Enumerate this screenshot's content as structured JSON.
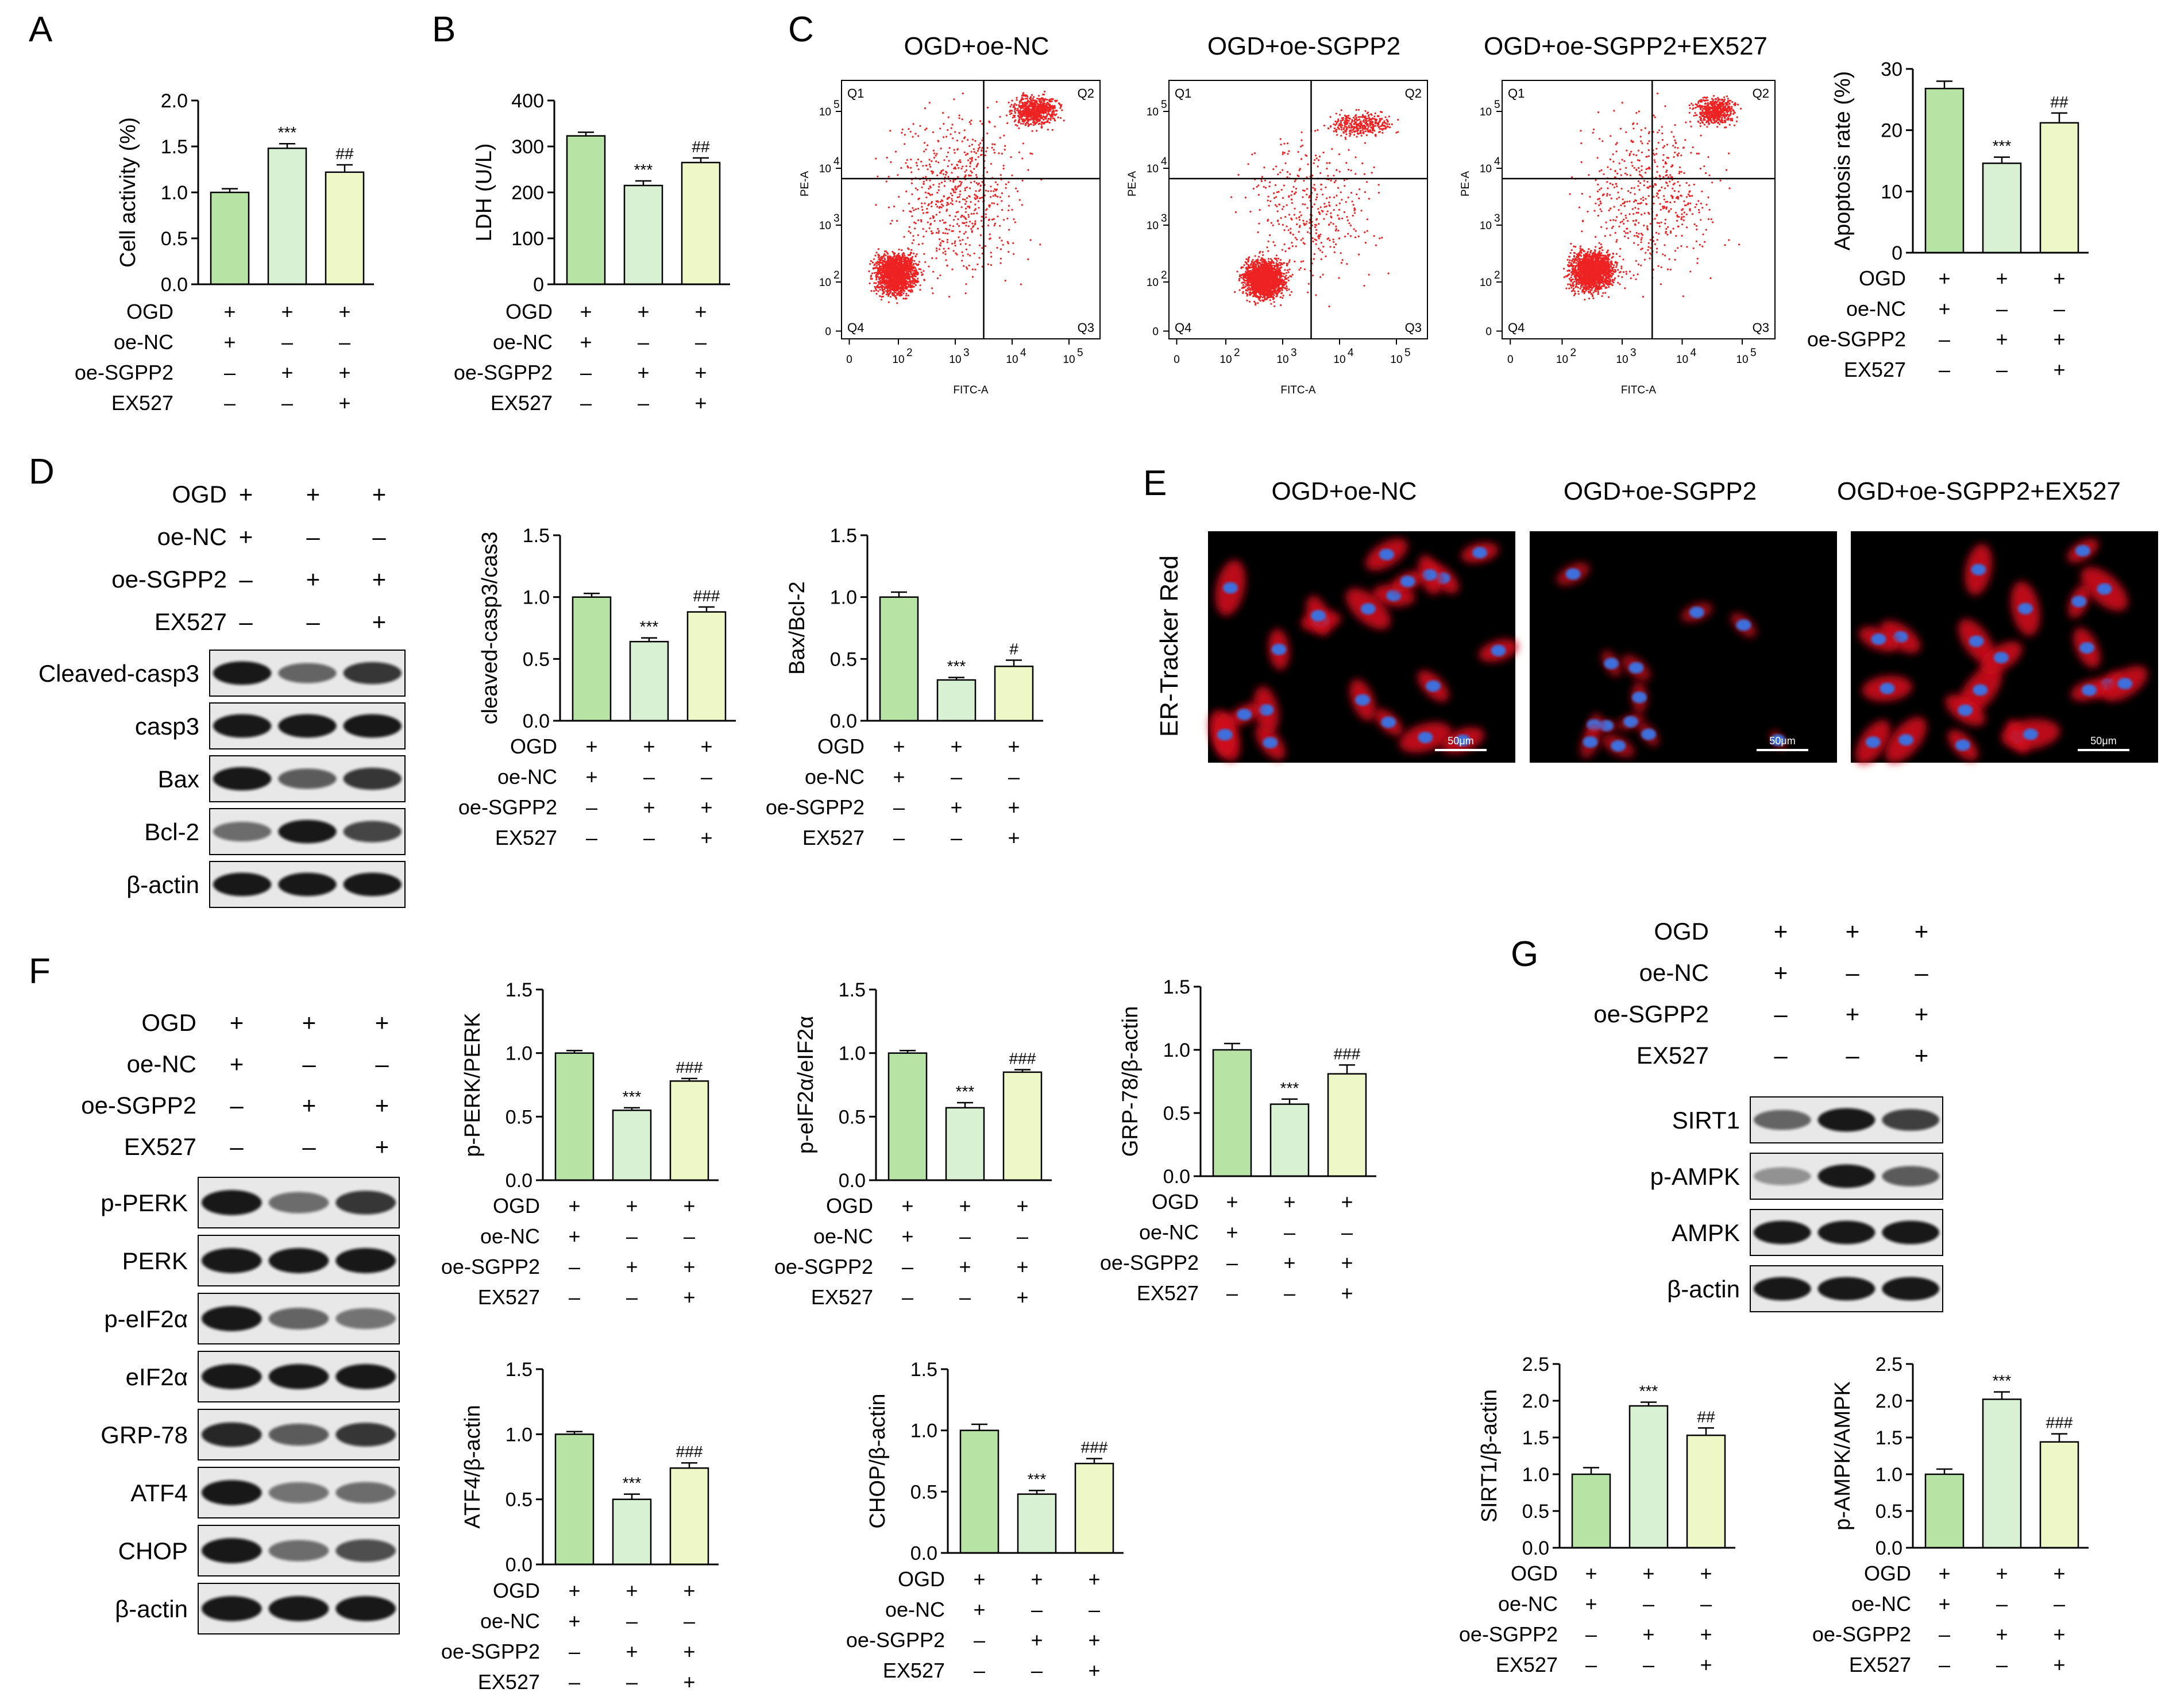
{
  "colors": {
    "bar_fills": [
      "#b7e3a4",
      "#d8f1d3",
      "#eef7c6"
    ],
    "bar_edge": "#000000",
    "dot": "#ee2222",
    "fluor_red": "#d0101c",
    "fluor_blue": "#3d6fdc"
  },
  "treatment_labels": [
    "OGD",
    "oe-NC",
    "oe-SGPP2",
    "EX527"
  ],
  "treatment_signs": [
    [
      "+",
      "+",
      "+"
    ],
    [
      "+",
      "–",
      "–"
    ],
    [
      "–",
      "+",
      "+"
    ],
    [
      "–",
      "–",
      "+"
    ]
  ],
  "panels": {
    "A": "A",
    "B": "B",
    "C": "C",
    "D": "D",
    "E": "E",
    "F": "F",
    "G": "G"
  },
  "flow": {
    "titles": [
      "OGD+oe-NC",
      "OGD+oe-SGPP2",
      "OGD+oe-SGPP2+EX527"
    ],
    "quadrants": [
      "Q1",
      "Q2",
      "Q3",
      "Q4"
    ],
    "xlabel": "FITC-A",
    "ylabel": "PE-A",
    "ticks": [
      "0",
      "10",
      "2",
      "10",
      "3",
      "10",
      "4",
      "10",
      "5"
    ]
  },
  "microscopy": {
    "titles": [
      "OGD+oe-NC",
      "OGD+oe-SGPP2",
      "OGD+oe-SGPP2+EX527"
    ],
    "ylabel": "ER-Tracker Red",
    "scale_label": "50μm"
  },
  "blots": {
    "D": {
      "header": [
        "OGD",
        "oe-NC",
        "oe-SGPP2",
        "EX527"
      ],
      "bands": [
        "Cleaved-casp3",
        "casp3",
        "Bax",
        "Bcl-2",
        "β-actin"
      ]
    },
    "F": {
      "header": [
        "OGD",
        "oe-NC",
        "oe-SGPP2",
        "EX527"
      ],
      "bands": [
        "p-PERK",
        "PERK",
        "p-eIF2α",
        "eIF2α",
        "GRP-78",
        "ATF4",
        "CHOP",
        "β-actin"
      ]
    },
    "G": {
      "header": [
        "OGD",
        "oe-NC",
        "oe-SGPP2",
        "EX527"
      ],
      "bands": [
        "SIRT1",
        "p-AMPK",
        "AMPK",
        "β-actin"
      ]
    }
  },
  "chart_data": [
    {
      "id": "A",
      "type": "bar",
      "ylabel": "Cell activity (%)",
      "ylim": [
        0,
        2.0
      ],
      "yticks": [
        "0.0",
        "0.5",
        "1.0",
        "1.5",
        "2.0"
      ],
      "values": [
        1.0,
        1.48,
        1.22
      ],
      "errors": [
        0.04,
        0.05,
        0.08
      ],
      "annotations": [
        "",
        "***",
        "##"
      ]
    },
    {
      "id": "B",
      "type": "bar",
      "ylabel": "LDH (U/L)",
      "ylim": [
        0,
        400
      ],
      "yticks": [
        "0",
        "100",
        "200",
        "300",
        "400"
      ],
      "values": [
        323,
        215,
        265
      ],
      "errors": [
        8,
        10,
        10
      ],
      "annotations": [
        "",
        "***",
        "##"
      ]
    },
    {
      "id": "C",
      "type": "bar",
      "ylabel": "Apoptosis rate (%)",
      "ylim": [
        0,
        30
      ],
      "yticks": [
        "0",
        "10",
        "20",
        "30"
      ],
      "values": [
        26.8,
        14.6,
        21.2
      ],
      "errors": [
        1.2,
        1.0,
        1.6
      ],
      "annotations": [
        "",
        "***",
        "##"
      ]
    },
    {
      "id": "D1",
      "type": "bar",
      "ylabel": "cleaved-casp3/cas3",
      "ylim": [
        0,
        1.5
      ],
      "yticks": [
        "0.0",
        "0.5",
        "1.0",
        "1.5"
      ],
      "values": [
        1.0,
        0.64,
        0.88
      ],
      "errors": [
        0.03,
        0.03,
        0.04
      ],
      "annotations": [
        "",
        "***",
        "###"
      ]
    },
    {
      "id": "D2",
      "type": "bar",
      "ylabel": "Bax/Bcl-2",
      "ylim": [
        0,
        1.5
      ],
      "yticks": [
        "0.0",
        "0.5",
        "1.0",
        "1.5"
      ],
      "values": [
        1.0,
        0.33,
        0.44
      ],
      "errors": [
        0.04,
        0.02,
        0.05
      ],
      "annotations": [
        "",
        "***",
        "#"
      ]
    },
    {
      "id": "F1",
      "type": "bar",
      "ylabel": "p-PERK/PERK",
      "ylim": [
        0,
        1.5
      ],
      "yticks": [
        "0.0",
        "0.5",
        "1.0",
        "1.5"
      ],
      "values": [
        1.0,
        0.55,
        0.78
      ],
      "errors": [
        0.02,
        0.02,
        0.02
      ],
      "annotations": [
        "",
        "***",
        "###"
      ]
    },
    {
      "id": "F2",
      "type": "bar",
      "ylabel": "p-eIF2α/eIF2α",
      "ylim": [
        0,
        1.5
      ],
      "yticks": [
        "0.0",
        "0.5",
        "1.0",
        "1.5"
      ],
      "values": [
        1.0,
        0.57,
        0.85
      ],
      "errors": [
        0.02,
        0.04,
        0.02
      ],
      "annotations": [
        "",
        "***",
        "###"
      ]
    },
    {
      "id": "F3",
      "type": "bar",
      "ylabel": "GRP-78/β-actin",
      "ylim": [
        0,
        1.5
      ],
      "yticks": [
        "0.0",
        "0.5",
        "1.0",
        "1.5"
      ],
      "values": [
        1.0,
        0.57,
        0.81
      ],
      "errors": [
        0.05,
        0.04,
        0.07
      ],
      "annotations": [
        "",
        "***",
        "###"
      ]
    },
    {
      "id": "F4",
      "type": "bar",
      "ylabel": "ATF4/β-actin",
      "ylim": [
        0,
        1.5
      ],
      "yticks": [
        "0.0",
        "0.5",
        "1.0",
        "1.5"
      ],
      "values": [
        1.0,
        0.5,
        0.74
      ],
      "errors": [
        0.02,
        0.04,
        0.04
      ],
      "annotations": [
        "",
        "***",
        "###"
      ]
    },
    {
      "id": "F5",
      "type": "bar",
      "ylabel": "CHOP/β-actin",
      "ylim": [
        0,
        1.5
      ],
      "yticks": [
        "0.0",
        "0.5",
        "1.0",
        "1.5"
      ],
      "values": [
        1.0,
        0.48,
        0.73
      ],
      "errors": [
        0.05,
        0.03,
        0.04
      ],
      "annotations": [
        "",
        "***",
        "###"
      ]
    },
    {
      "id": "G1",
      "type": "bar",
      "ylabel": "SIRT1/β-actin",
      "ylim": [
        0,
        2.5
      ],
      "yticks": [
        "0.0",
        "0.5",
        "1.0",
        "1.5",
        "2.0",
        "2.5"
      ],
      "values": [
        1.0,
        1.93,
        1.53
      ],
      "errors": [
        0.09,
        0.05,
        0.1
      ],
      "annotations": [
        "",
        "***",
        "##"
      ]
    },
    {
      "id": "G2",
      "type": "bar",
      "ylabel": "p-AMPK/AMPK",
      "ylim": [
        0,
        2.5
      ],
      "yticks": [
        "0.0",
        "0.5",
        "1.0",
        "1.5",
        "2.0",
        "2.5"
      ],
      "values": [
        1.0,
        2.02,
        1.44
      ],
      "errors": [
        0.07,
        0.1,
        0.11
      ],
      "annotations": [
        "",
        "***",
        "###"
      ]
    }
  ]
}
